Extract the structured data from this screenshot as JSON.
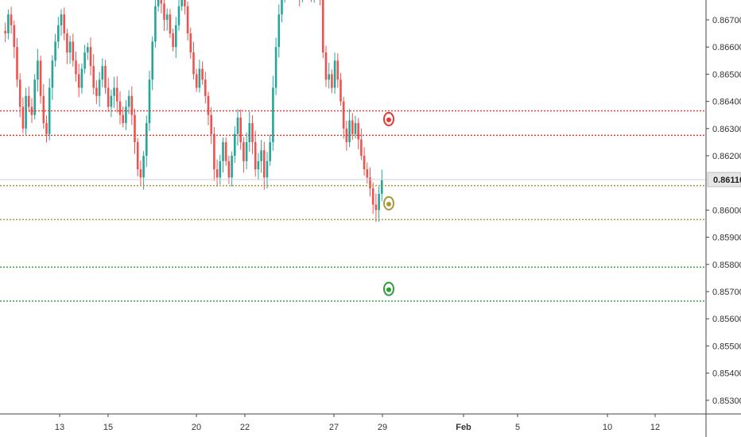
{
  "chart_data": {
    "type": "candlestick",
    "title": "",
    "xlabel": "",
    "ylabel": "",
    "ylim": [
      0.85245,
      0.86765
    ],
    "y_ticks": [
      "0.86700",
      "0.86600",
      "0.86500",
      "0.86400",
      "0.86300",
      "0.86200",
      "0.86000",
      "0.85900",
      "0.85800",
      "0.85700",
      "0.85600",
      "0.85500",
      "0.85400",
      "0.85300"
    ],
    "x_ticks": [
      {
        "label": "13",
        "bold": false
      },
      {
        "label": "15",
        "bold": false
      },
      {
        "label": "20",
        "bold": false
      },
      {
        "label": "22",
        "bold": false
      },
      {
        "label": "27",
        "bold": false
      },
      {
        "label": "29",
        "bold": false
      },
      {
        "label": "Feb",
        "bold": true
      },
      {
        "label": "5",
        "bold": false
      },
      {
        "label": "10",
        "bold": false
      },
      {
        "label": "12",
        "bold": false
      }
    ],
    "last_price": {
      "label": "0.86110",
      "value": 0.8611
    },
    "levels": [
      {
        "name": "resistance-2",
        "value": 0.86365,
        "color": "#e53935"
      },
      {
        "name": "resistance-1",
        "value": 0.86275,
        "color": "#e53935"
      },
      {
        "name": "entry",
        "value": 0.8609,
        "color": "#a89a3c"
      },
      {
        "name": "stop",
        "value": 0.85965,
        "color": "#a89a3c"
      },
      {
        "name": "target-1",
        "value": 0.8579,
        "color": "#2e9d3a"
      },
      {
        "name": "target-2",
        "value": 0.85665,
        "color": "#2e9d3a"
      }
    ],
    "markers": [
      {
        "name": "red-marker",
        "value": 0.86335,
        "color": "#e53935"
      },
      {
        "name": "olive-marker",
        "value": 0.86025,
        "color": "#a89a3c"
      },
      {
        "name": "green-marker",
        "value": 0.8571,
        "color": "#2e9d3a"
      }
    ],
    "colors": {
      "up": "#26a69a",
      "down": "#ef5350",
      "axis": "#333333",
      "grid": "#d8d8d8"
    },
    "closes": [
      0.8666,
      0.8665,
      0.8672,
      0.8668,
      0.866,
      0.8648,
      0.8638,
      0.863,
      0.8642,
      0.8638,
      0.8635,
      0.8648,
      0.8655,
      0.8642,
      0.8632,
      0.8628,
      0.8645,
      0.8655,
      0.8662,
      0.8668,
      0.8672,
      0.8665,
      0.8658,
      0.8662,
      0.8655,
      0.865,
      0.8645,
      0.8652,
      0.8658,
      0.866,
      0.8653,
      0.8645,
      0.8642,
      0.8648,
      0.8653,
      0.8645,
      0.8638,
      0.8642,
      0.8645,
      0.864,
      0.8635,
      0.8632,
      0.8638,
      0.8642,
      0.8635,
      0.8625,
      0.8615,
      0.8612,
      0.862,
      0.8632,
      0.8648,
      0.8662,
      0.8675,
      0.868,
      0.8676,
      0.867,
      0.8672,
      0.8665,
      0.866,
      0.8668,
      0.8675,
      0.8682,
      0.8675,
      0.8665,
      0.8658,
      0.865,
      0.8645,
      0.8652,
      0.8648,
      0.8642,
      0.8635,
      0.8628,
      0.8615,
      0.8612,
      0.8618,
      0.8625,
      0.8618,
      0.8612,
      0.862,
      0.8628,
      0.8634,
      0.8625,
      0.8618,
      0.8625,
      0.8632,
      0.8625,
      0.8615,
      0.8618,
      0.8622,
      0.8612,
      0.8618,
      0.8625,
      0.8645,
      0.866,
      0.8672,
      0.868,
      0.8688,
      0.8692,
      0.8688,
      0.8682,
      0.8686,
      0.8678,
      0.8688,
      0.8692,
      0.8686,
      0.868,
      0.8685,
      0.8684,
      0.8678,
      0.8658,
      0.8648,
      0.865,
      0.8645,
      0.8655,
      0.8648,
      0.864,
      0.863,
      0.8625,
      0.8633,
      0.8628,
      0.8632,
      0.8626,
      0.862,
      0.8615,
      0.8612,
      0.8608,
      0.8602,
      0.86,
      0.8606,
      0.8611
    ]
  }
}
